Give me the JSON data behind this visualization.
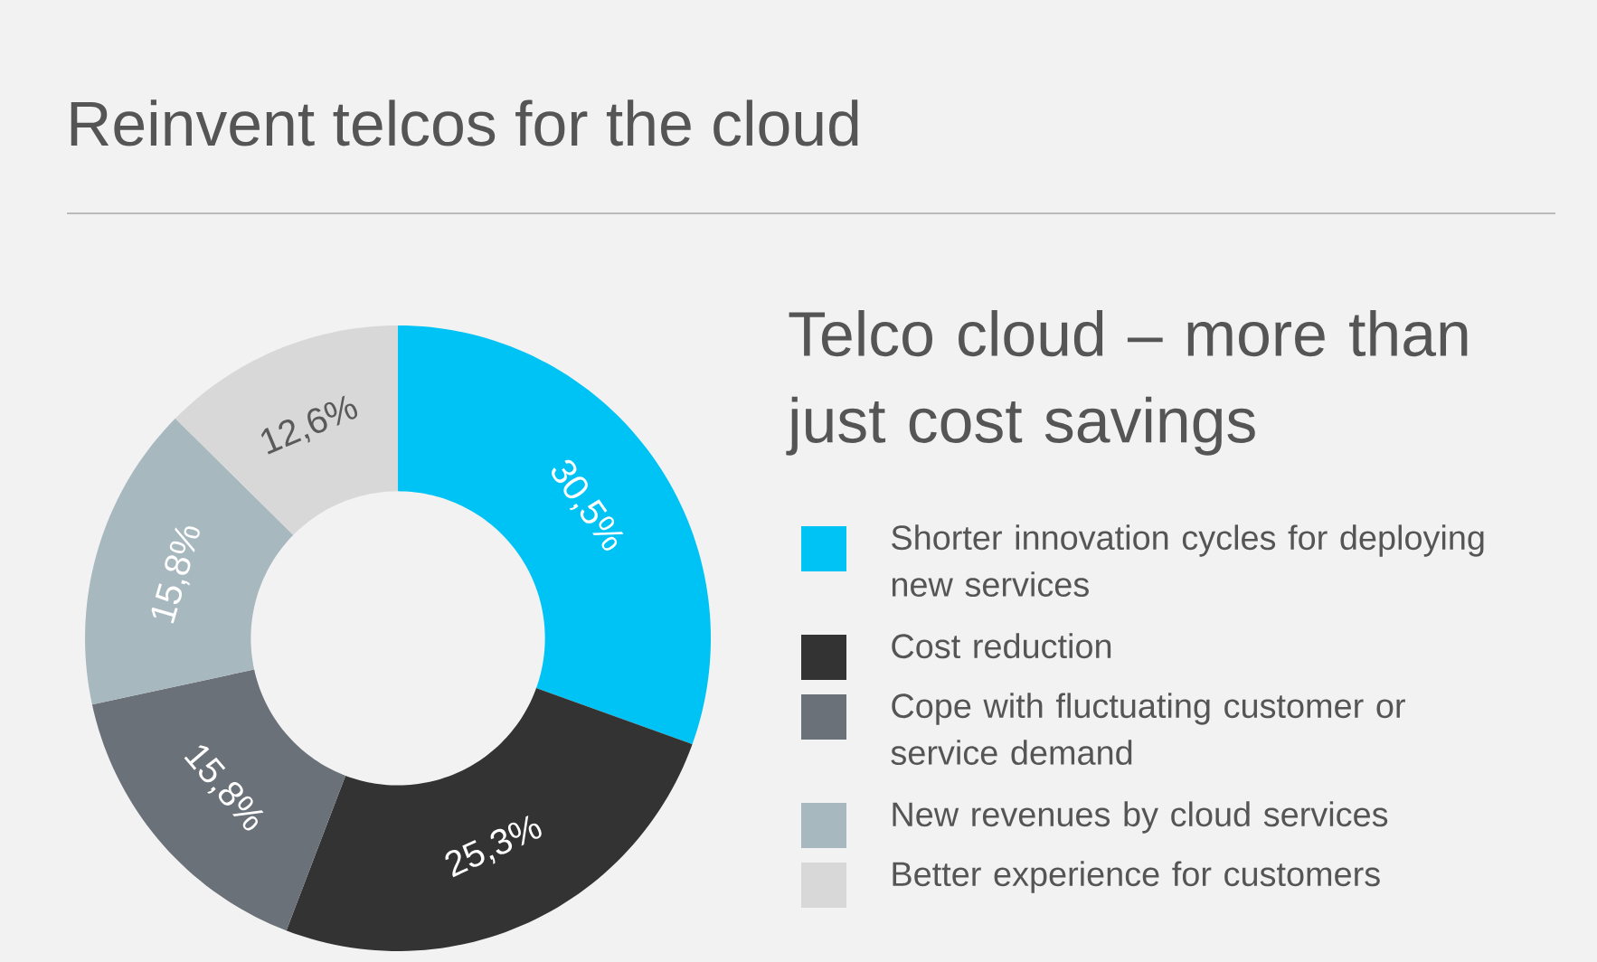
{
  "chart_data": {
    "type": "donut",
    "title": "Reinvent telcos for the cloud",
    "subtitle": "Telco cloud – more than just cost savings",
    "categories": [
      "Shorter innovation cycles for deploying new services",
      "Cost reduction",
      "Cope with fluctuating customer or service demand",
      "New revenues by cloud services",
      "Better experience for customers"
    ],
    "values": [
      30.5,
      25.3,
      15.8,
      15.8,
      12.6
    ],
    "colors": [
      "#00c3f5",
      "#333333",
      "#6b7179",
      "#a8b8bf",
      "#d8d8d8"
    ],
    "value_labels": [
      "30,5%",
      "25,3%",
      "15,8%",
      "15,8%",
      "12,6%"
    ],
    "legend": "right"
  }
}
